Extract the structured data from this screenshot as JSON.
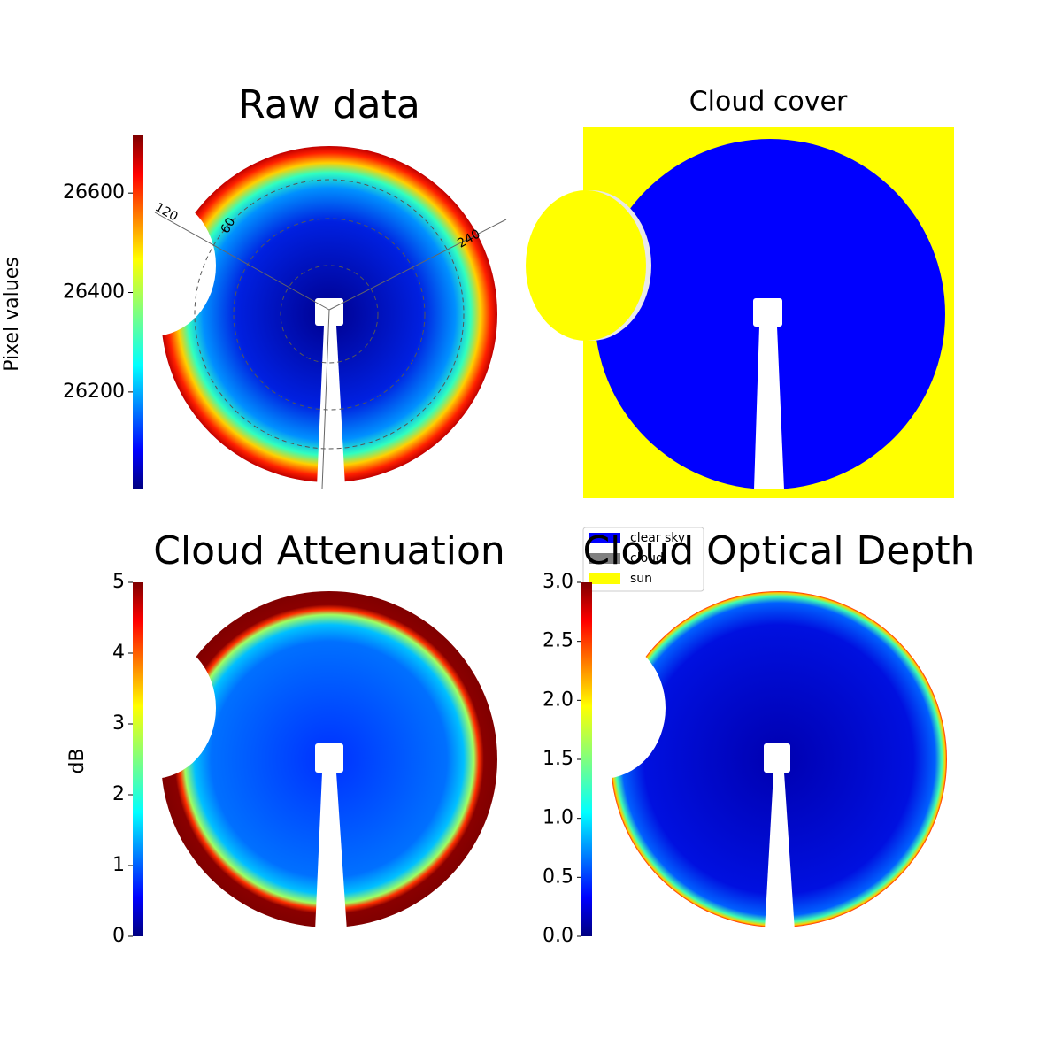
{
  "chart_data": [
    {
      "type": "image",
      "title": "Raw data",
      "colormap": "jet",
      "colorbar_label": "Pixel values",
      "ylim": [
        26004,
        26716
      ],
      "yticks": [
        26200,
        26400,
        26600
      ],
      "annotations": [
        "120",
        "60",
        "240"
      ]
    },
    {
      "type": "categorical",
      "title": "Cloud cover",
      "series": [
        {
          "name": "clear sky",
          "color": "#0000ff"
        },
        {
          "name": "cloud",
          "color": "#808080"
        },
        {
          "name": "sun",
          "color": "#ffff00"
        }
      ]
    },
    {
      "type": "image",
      "title": "Cloud Attenuation",
      "colormap": "jet",
      "colorbar_label": "dB",
      "ylim": [
        0,
        5
      ],
      "yticks": [
        0,
        1,
        2,
        3,
        4,
        5
      ]
    },
    {
      "type": "image",
      "title": "Cloud Optical Depth",
      "colormap": "jet",
      "ylim": [
        0,
        3
      ],
      "yticks": [
        {
          "value": 0,
          "label": "0.0"
        },
        {
          "value": 0.5,
          "label": "0.5"
        },
        {
          "value": 1,
          "label": "1.0"
        },
        {
          "value": 1.5,
          "label": "1.5"
        },
        {
          "value": 2,
          "label": "2.0"
        },
        {
          "value": 2.5,
          "label": "2.5"
        },
        {
          "value": 3,
          "label": "3.0"
        }
      ]
    }
  ]
}
